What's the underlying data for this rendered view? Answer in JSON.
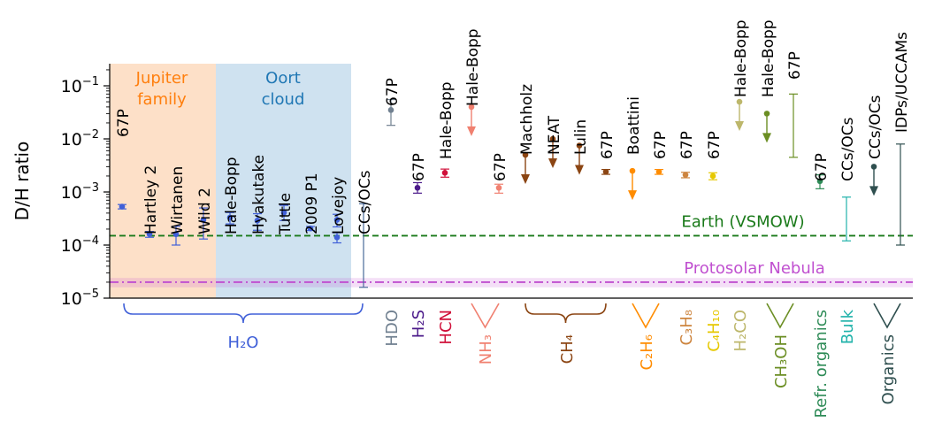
{
  "chart_data": {
    "type": "scatter",
    "ylabel": "D/H ratio",
    "yscale": "log",
    "ylim": [
      1e-05,
      0.3
    ],
    "yticks": [
      {
        "value": 1e-05,
        "label": "10",
        "exp": "−5"
      },
      {
        "value": 0.0001,
        "label": "10",
        "exp": "−4"
      },
      {
        "value": 0.001,
        "label": "10",
        "exp": "−3"
      },
      {
        "value": 0.01,
        "label": "10",
        "exp": "−2"
      },
      {
        "value": 0.1,
        "label": "10",
        "exp": "−1"
      }
    ],
    "regions": [
      {
        "label_lines": [
          "Jupiter",
          "family"
        ],
        "color": "#fde0c8",
        "text_color": "#ff7f0e"
      },
      {
        "label_lines": [
          "Oort",
          "cloud"
        ],
        "color": "#cfe2f0",
        "text_color": "#1f77b4"
      }
    ],
    "reference_lines": [
      {
        "label": "Earth (VSMOW)",
        "value": 0.00015,
        "color": "#1a7a1a",
        "style": "dashed"
      },
      {
        "label": "Protosolar Nebula",
        "value": 2e-05,
        "color": "#c050d0",
        "style": "dashdot",
        "band": [
          1.6e-05,
          2.4e-05
        ]
      }
    ],
    "points": [
      {
        "label": "67P",
        "value": 0.00053,
        "err_low": 0.00048,
        "err_high": 0.00058,
        "kind": "point",
        "color": "#4060d8"
      },
      {
        "label": "Hartley 2",
        "value": 0.000161,
        "err_low": 0.00014,
        "err_high": 0.00018,
        "kind": "point",
        "color": "#4060d8"
      },
      {
        "label": "Wirtanen",
        "value": 0.00016,
        "err_low": 0.0001,
        "err_high": 0.000225,
        "kind": "point",
        "color": "#4060d8"
      },
      {
        "label": "Wild 2",
        "value": 0.0003,
        "err_low": 0.00013,
        "err_high": 0.0005,
        "kind": "point",
        "color": "#4060d8"
      },
      {
        "label": "Hale-Bopp",
        "value": 0.00033,
        "err_low": 0.00025,
        "err_high": 0.00041,
        "kind": "point",
        "color": "#4060d8"
      },
      {
        "label": "Hyakutake",
        "value": 0.00029,
        "err_low": 0.00019,
        "err_high": 0.00039,
        "kind": "point",
        "color": "#4060d8"
      },
      {
        "label": "Tuttle",
        "value": 0.00041,
        "err_low": 0.00029,
        "err_high": 0.00056,
        "kind": "point",
        "color": "#4060d8"
      },
      {
        "label": "2009 P1",
        "value": 0.000206,
        "err_low": 0.000188,
        "err_high": 0.000224,
        "kind": "point",
        "color": "#4060d8"
      },
      {
        "label": "Lovejoy",
        "value": 0.0003,
        "err_low": 0.00022,
        "err_high": 0.00038,
        "kind": "point",
        "color": "#4060d8"
      },
      {
        "label": "",
        "value": 0.00014,
        "err_low": 0.00011,
        "err_high": 0.00017,
        "kind": "point",
        "color": "#4060d8"
      },
      {
        "label": "CCs/OCs",
        "value": null,
        "err_low": 1.6e-05,
        "err_high": 0.0006,
        "kind": "range",
        "color": "#4a6a9a"
      },
      {
        "label": "67P",
        "value": 0.035,
        "err_low": 0.018,
        "err_high": 0.055,
        "kind": "point",
        "color": "#708090"
      },
      {
        "label": "67P",
        "value": 0.0012,
        "err_low": 0.00095,
        "err_high": 0.0015,
        "kind": "point",
        "color": "#4b1a8a"
      },
      {
        "label": "Hale-Bopp",
        "value": 0.0023,
        "err_low": 0.0019,
        "err_high": 0.0027,
        "kind": "point",
        "color": "#d0103a"
      },
      {
        "label": "Hale-Bopp",
        "value": 0.04,
        "err_low": null,
        "err_high": null,
        "kind": "upper",
        "color": "#f08070"
      },
      {
        "label": "67P",
        "value": 0.0012,
        "err_low": 0.00095,
        "err_high": 0.0014,
        "kind": "point",
        "color": "#f08070"
      },
      {
        "label": "Machholz",
        "value": 0.005,
        "err_low": null,
        "err_high": null,
        "kind": "upper",
        "color": "#8b4513"
      },
      {
        "label": "NEAT",
        "value": 0.01,
        "err_low": null,
        "err_high": null,
        "kind": "upper",
        "color": "#8b4513"
      },
      {
        "label": "Lulin",
        "value": 0.0075,
        "err_low": null,
        "err_high": null,
        "kind": "upper",
        "color": "#8b4513"
      },
      {
        "label": "67P",
        "value": 0.0024,
        "err_low": 0.00215,
        "err_high": 0.00265,
        "kind": "point",
        "color": "#8b4513"
      },
      {
        "label": "Boattini",
        "value": 0.0025,
        "err_low": null,
        "err_high": null,
        "kind": "upper",
        "color": "#ff8c00"
      },
      {
        "label": "67P",
        "value": 0.0024,
        "err_low": 0.00215,
        "err_high": 0.00265,
        "kind": "point",
        "color": "#ff8c00"
      },
      {
        "label": "67P",
        "value": 0.0021,
        "err_low": 0.00185,
        "err_high": 0.00235,
        "kind": "point",
        "color": "#cd853f"
      },
      {
        "label": "67P",
        "value": 0.002,
        "err_low": 0.0017,
        "err_high": 0.0023,
        "kind": "point",
        "color": "#e6c800"
      },
      {
        "label": "Hale-Bopp",
        "value": 0.05,
        "err_low": null,
        "err_high": null,
        "kind": "upper",
        "color": "#bdb76b"
      },
      {
        "label": "Hale-Bopp",
        "value": 0.03,
        "err_low": null,
        "err_high": null,
        "kind": "upper",
        "color": "#6b8e23"
      },
      {
        "label": "67P",
        "value": null,
        "err_low": 0.0045,
        "err_high": 0.07,
        "kind": "range",
        "color": "#6b8e23"
      },
      {
        "label": "67P",
        "value": 0.0016,
        "err_low": 0.00115,
        "err_high": 0.0021,
        "kind": "point",
        "color": "#2e8b57"
      },
      {
        "label": "CCs/OCs",
        "value": null,
        "err_low": 0.00012,
        "err_high": 0.0008,
        "kind": "range",
        "color": "#20b2aa"
      },
      {
        "label": "CCs/OCs",
        "value": 0.003,
        "err_low": null,
        "err_high": null,
        "kind": "upper",
        "color": "#2f4f4f"
      },
      {
        "label": "IDPs/UCCAMs",
        "value": null,
        "err_low": 0.0001,
        "err_high": 0.008,
        "kind": "range",
        "color": "#2f4f4f"
      }
    ],
    "groups": [
      {
        "name": "H₂O",
        "color": "#4060d8",
        "brace": "curly"
      },
      {
        "name": "HDO",
        "color": "#708090",
        "brace": "none"
      },
      {
        "name": "H₂S",
        "color": "#4b1a8a",
        "brace": "none"
      },
      {
        "name": "HCN",
        "color": "#d0103a",
        "brace": "none"
      },
      {
        "name": "NH₃",
        "color": "#f08070",
        "brace": "v"
      },
      {
        "name": "CH₄",
        "color": "#8b4513",
        "brace": "curly"
      },
      {
        "name": "C₂H₆",
        "color": "#ff8c00",
        "brace": "v"
      },
      {
        "name": "C₃H₈",
        "color": "#cd853f",
        "brace": "none"
      },
      {
        "name": "C₄H₁₀",
        "color": "#e6c800",
        "brace": "none"
      },
      {
        "name": "H₂CO",
        "color": "#bdb76b",
        "brace": "none"
      },
      {
        "name": "CH₃OH",
        "color": "#6b8e23",
        "brace": "v"
      },
      {
        "name": "Refr. organics",
        "color": "#2e8b57",
        "brace": "none"
      },
      {
        "name": "Bulk",
        "color": "#20b2aa",
        "brace": "none"
      },
      {
        "name": "Organics",
        "color": "#2f4f4f",
        "brace": "v"
      }
    ]
  }
}
